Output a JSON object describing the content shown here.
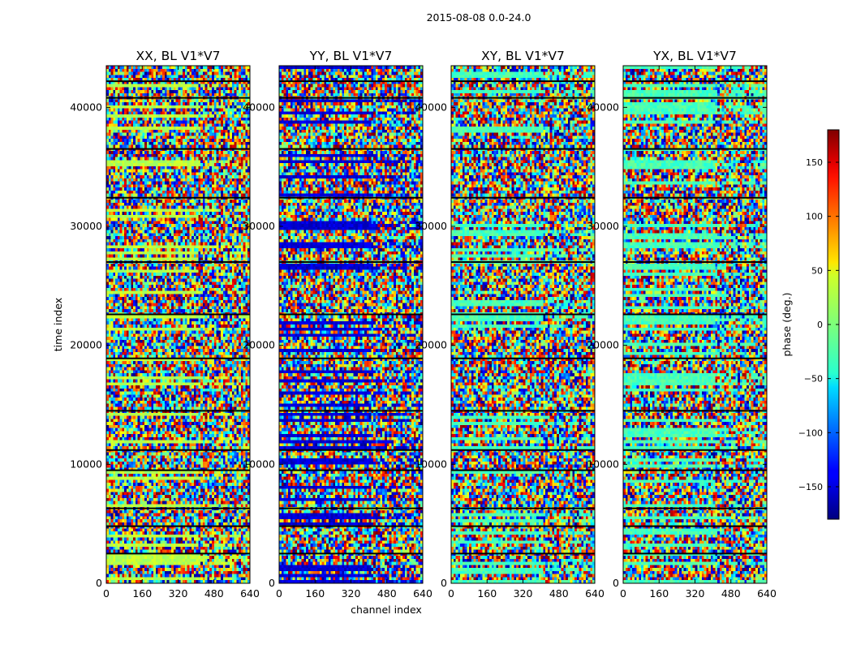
{
  "figure": {
    "suptitle": "2015-08-08 0.0-24.0"
  },
  "chart_data": {
    "type": "heatmap",
    "title": "2015-08-08 0.0-24.0",
    "xlabel": "channel index",
    "ylabel": "time index",
    "xlim": [
      0,
      640
    ],
    "ylim": [
      0,
      43500
    ],
    "x_ticks": [
      0,
      160,
      320,
      480,
      640
    ],
    "y_ticks": [
      0,
      10000,
      20000,
      30000,
      40000
    ],
    "panels": [
      {
        "name": "XX",
        "title": "XX, BL V1*V7",
        "feature": 20
      },
      {
        "name": "YY",
        "title": "YY, BL V1*V7",
        "feature": -150
      },
      {
        "name": "XY",
        "title": "XY, BL V1*V7",
        "feature": -20
      },
      {
        "name": "YX",
        "title": "YX, BL V1*V7",
        "feature": -20
      }
    ],
    "colorbar": {
      "label": "phase (deg.)",
      "range": [
        -180,
        180
      ],
      "ticks": [
        -150,
        -100,
        -50,
        0,
        50,
        100,
        150
      ],
      "tick_labels": [
        "−150",
        "−100",
        "−50",
        "0",
        "50",
        "100",
        "150"
      ],
      "colormap": "jet"
    },
    "flagged_rows": [
      2500,
      4800,
      6300,
      9500,
      11200,
      14500,
      18900,
      22600,
      27000,
      32400,
      36500,
      40800,
      42200
    ]
  }
}
